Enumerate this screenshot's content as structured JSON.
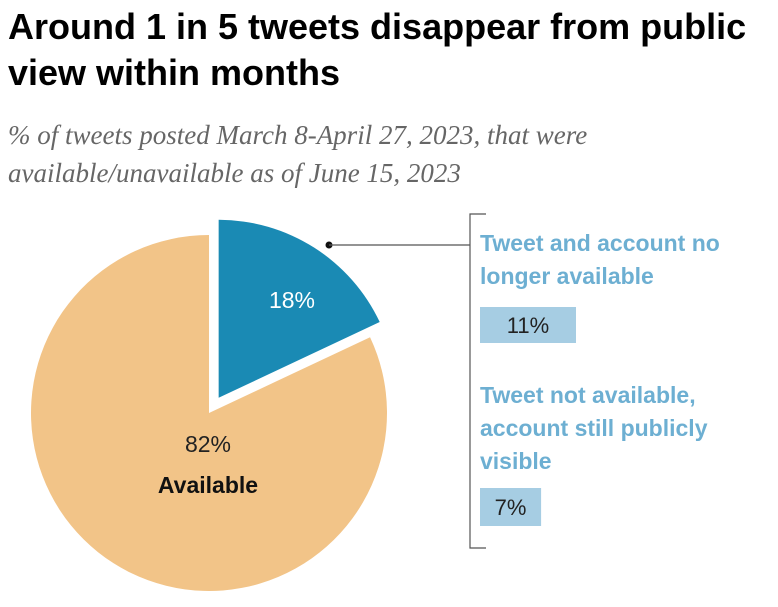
{
  "chart_data": {
    "type": "pie",
    "title": "Around 1 in 5 tweets disappear from public view within months",
    "subtitle": "% of tweets posted March 8-April 27, 2023, that were available/unavailable as of June 15, 2023",
    "slices": [
      {
        "name": "Available",
        "value": 82,
        "label": "82%",
        "color": "#f2c488"
      },
      {
        "name": "",
        "value": 18,
        "label": "18%",
        "color": "#1a8ab4",
        "exploded": true
      }
    ],
    "breakdown": [
      {
        "lines": [
          "Tweet and account no",
          "longer available"
        ],
        "value": 11,
        "label": "11%"
      },
      {
        "lines": [
          "Tweet not available,",
          "account still publicly",
          "visible"
        ],
        "value": 7,
        "label": "7%"
      }
    ],
    "colors": {
      "available": "#f2c488",
      "unavailable": "#1a8ab4",
      "breakdown_text": "#6dafd2",
      "breakdown_box": "#a6cde3"
    }
  }
}
